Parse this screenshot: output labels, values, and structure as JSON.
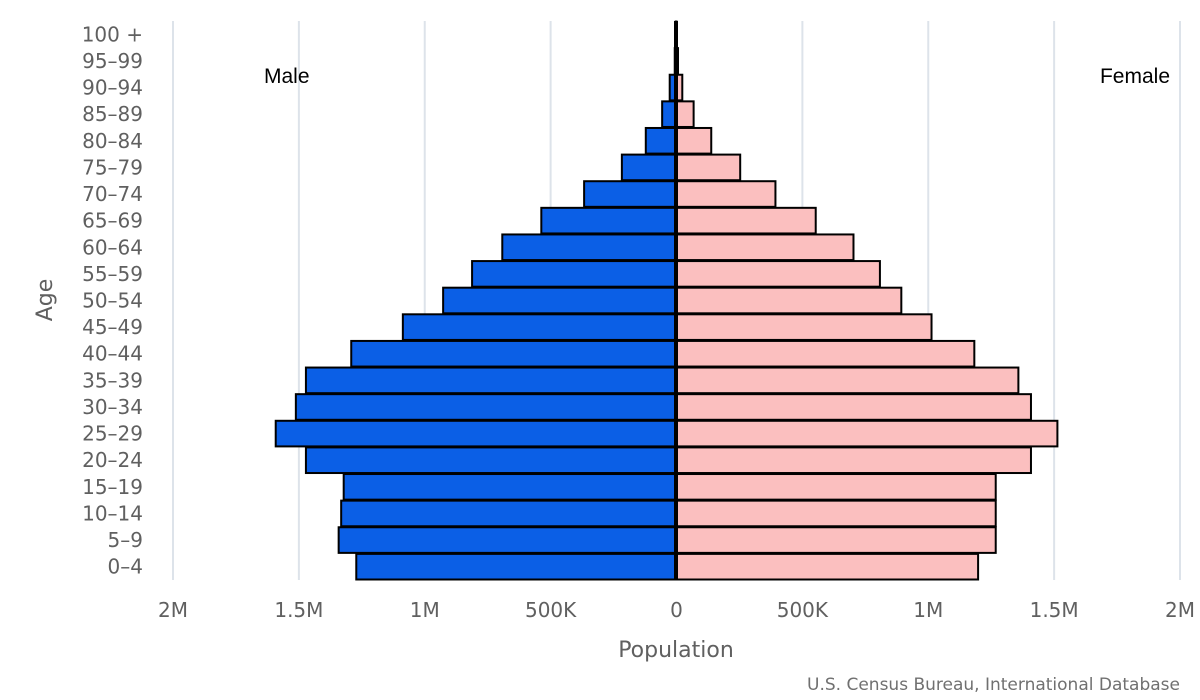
{
  "chart_data": {
    "type": "bar",
    "orientation": "horizontal",
    "layout": "population-pyramid",
    "categories": [
      "100 +",
      "95-99",
      "90-94",
      "85-89",
      "80-84",
      "75-79",
      "70-74",
      "65-69",
      "60-64",
      "55-59",
      "50-54",
      "45-49",
      "40-44",
      "35-39",
      "30-34",
      "25-29",
      "20-24",
      "15-19",
      "10-14",
      "5-9",
      "0-4"
    ],
    "series": [
      {
        "name": "Male",
        "color": "#0b5fe6",
        "side": "left",
        "values": [
          1000,
          5000,
          25000,
          55000,
          120000,
          215000,
          365000,
          535000,
          690000,
          810000,
          925000,
          1085000,
          1290000,
          1470000,
          1510000,
          1590000,
          1470000,
          1320000,
          1330000,
          1340000,
          1270000
        ]
      },
      {
        "name": "Female",
        "color": "#fbbfbf",
        "side": "right",
        "values": [
          2000,
          8000,
          25000,
          70000,
          140000,
          255000,
          395000,
          555000,
          705000,
          810000,
          895000,
          1015000,
          1185000,
          1360000,
          1410000,
          1515000,
          1410000,
          1270000,
          1270000,
          1270000,
          1200000
        ]
      }
    ],
    "xlim": [
      -2000000,
      2000000
    ],
    "x_ticks": [
      -2000000,
      -1500000,
      -1000000,
      -500000,
      0,
      500000,
      1000000,
      1500000,
      2000000
    ],
    "x_tick_labels": [
      "2M",
      "1.5M",
      "1M",
      "500K",
      "0",
      "500K",
      "1M",
      "1.5M",
      "2M"
    ],
    "xlabel": "Population",
    "ylabel": "Age",
    "grid": true,
    "legend": "none",
    "source": "U.S. Census Bureau, International Database"
  }
}
